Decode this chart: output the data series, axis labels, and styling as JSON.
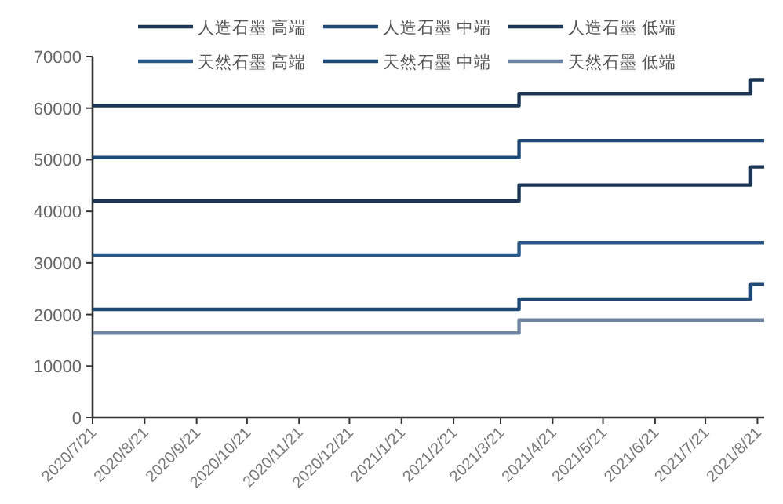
{
  "chart_data": {
    "type": "step",
    "legend": "top",
    "xlim": [
      "2020-07-21",
      "2021-08-25"
    ],
    "xticks": [
      {
        "value": "2020-07-21",
        "label": "2020/7/21"
      },
      {
        "value": "2020-08-21",
        "label": "2020/8/21"
      },
      {
        "value": "2020-09-21",
        "label": "2020/9/21"
      },
      {
        "value": "2020-10-21",
        "label": "2020/10/21"
      },
      {
        "value": "2020-11-21",
        "label": "2020/11/21"
      },
      {
        "value": "2020-12-21",
        "label": "2020/12/21"
      },
      {
        "value": "2021-01-21",
        "label": "2021/1/21"
      },
      {
        "value": "2021-02-21",
        "label": "2021/2/21"
      },
      {
        "value": "2021-03-21",
        "label": "2021/3/21"
      },
      {
        "value": "2021-04-21",
        "label": "2021/4/21"
      },
      {
        "value": "2021-05-21",
        "label": "2021/5/21"
      },
      {
        "value": "2021-06-21",
        "label": "2021/6/21"
      },
      {
        "value": "2021-07-21",
        "label": "2021/7/21"
      },
      {
        "value": "2021-08-21",
        "label": "2021/8/21"
      }
    ],
    "ylim": [
      0,
      70000
    ],
    "yticks": [
      0,
      10000,
      20000,
      30000,
      40000,
      50000,
      60000,
      70000
    ],
    "grid": false,
    "x": [
      "2020-07-21",
      "2021-04-01",
      "2021-08-17",
      "2021-08-25"
    ],
    "series": [
      {
        "name": "人造石墨 高端",
        "color": "#1c3554",
        "values": [
          60500,
          62800,
          65500,
          65500
        ]
      },
      {
        "name": "人造石墨 中端",
        "color": "#1f4a78",
        "values": [
          50400,
          53700,
          53700,
          53700
        ]
      },
      {
        "name": "人造石墨 低端",
        "color": "#1c3554",
        "values": [
          42000,
          45100,
          48600,
          48600
        ]
      },
      {
        "name": "天然石墨 高端",
        "color": "#2a5886",
        "values": [
          31500,
          33900,
          33900,
          33900
        ]
      },
      {
        "name": "天然石墨 中端",
        "color": "#1f4a78",
        "values": [
          21000,
          23000,
          25900,
          25900
        ]
      },
      {
        "name": "天然石墨 低端",
        "color": "#6f84a3",
        "values": [
          16400,
          18900,
          18900,
          18900
        ]
      }
    ]
  }
}
